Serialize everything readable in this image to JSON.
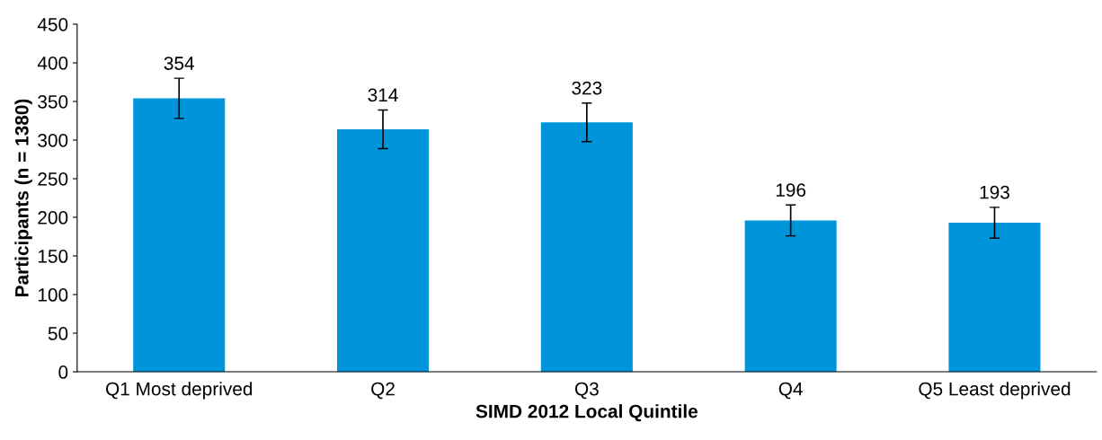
{
  "chart_data": {
    "type": "bar",
    "xlabel": "SIMD 2012 Local Quintile",
    "ylabel": "Participants (n = 1380)",
    "categories": [
      "Q1 Most deprived",
      "Q2",
      "Q3",
      "Q4",
      "Q5 Least deprived"
    ],
    "values": [
      354,
      314,
      323,
      196,
      193
    ],
    "errors": [
      26,
      25,
      25,
      20,
      20
    ],
    "color": "#0095da",
    "data_labels": true,
    "ylim": [
      0,
      450
    ],
    "yticks": [
      0,
      50,
      100,
      150,
      200,
      250,
      300,
      350,
      400,
      450
    ],
    "grid": false,
    "legend": false
  }
}
